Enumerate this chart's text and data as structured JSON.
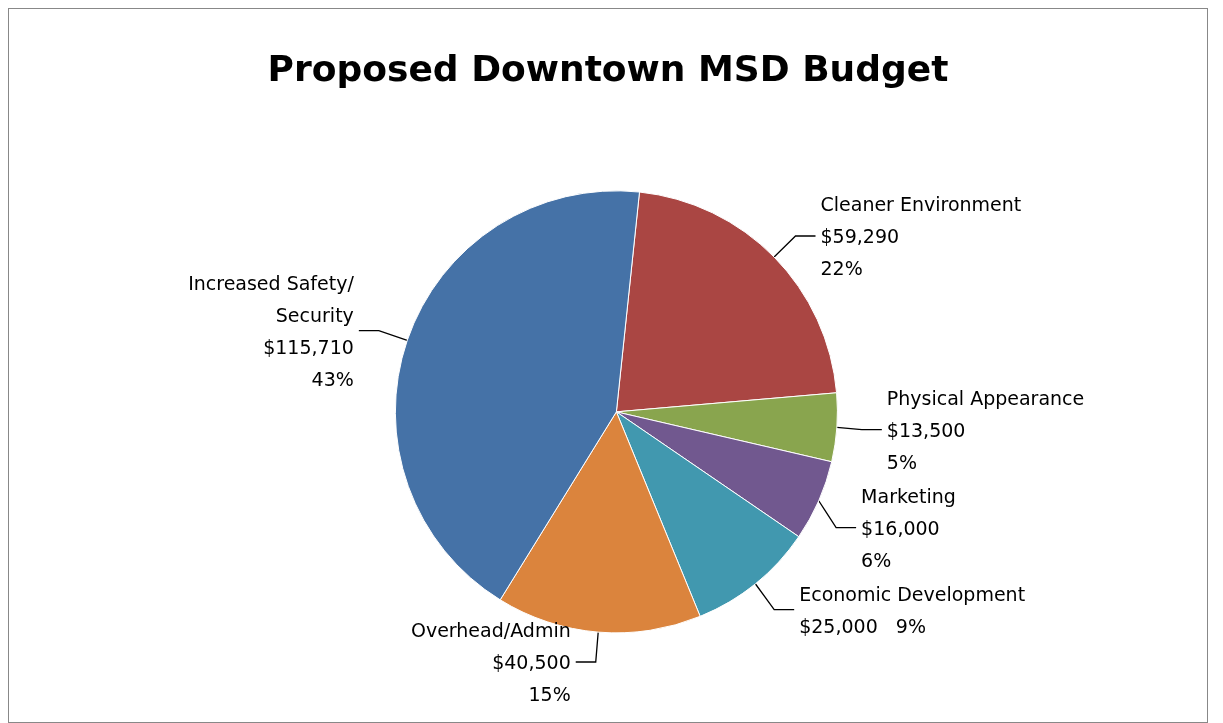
{
  "chart_data": {
    "type": "pie",
    "title": "Proposed Downtown MSD Budget",
    "categories": [
      "Cleaner Environment",
      "Physical Appearance",
      "Marketing",
      "Economic Development",
      "Overhead/Admin",
      "Increased Safety/Security"
    ],
    "values": [
      59290,
      13500,
      16000,
      25000,
      40500,
      115710
    ],
    "value_labels": [
      "$59,290\n22%",
      "$13,500\n5%",
      "$16,000\n6%",
      "$25,000   9%",
      "$40,500\n15%",
      "$115,710\n43%"
    ],
    "colors": [
      "#aa4643",
      "#89a54e",
      "#71588f",
      "#4198af",
      "#db843d",
      "#4572a7"
    ],
    "legend": false
  }
}
